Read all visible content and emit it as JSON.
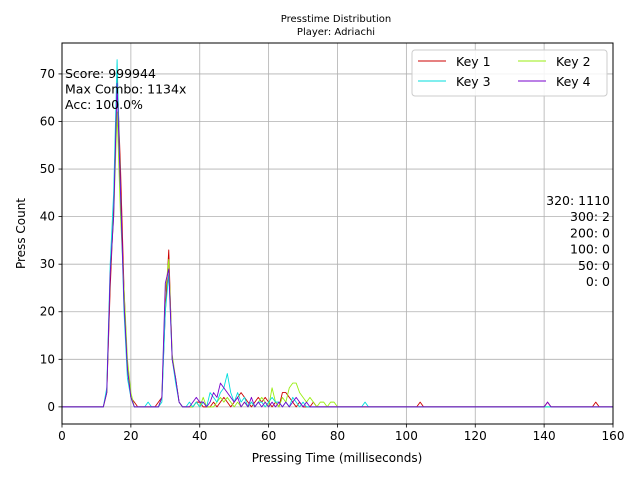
{
  "chart_data": {
    "type": "line",
    "title": "Presstime Distribution",
    "subtitle": "Player: Adriachi",
    "xlabel": "Pressing Time (milliseconds)",
    "ylabel": "Press Count",
    "xlim": [
      0,
      160
    ],
    "ylim": [
      -3.6,
      76.5
    ],
    "xticks": [
      0,
      20,
      40,
      60,
      80,
      100,
      120,
      140,
      160
    ],
    "yticks": [
      0,
      10,
      20,
      30,
      40,
      50,
      60,
      70
    ],
    "grid": true,
    "legend_position": "top-right",
    "legend_columns": 2,
    "series": [
      {
        "name": "Key 1",
        "color": "#cc0000",
        "points": [
          [
            0,
            0
          ],
          [
            12,
            0
          ],
          [
            13,
            3
          ],
          [
            14,
            25
          ],
          [
            15,
            42
          ],
          [
            16,
            70
          ],
          [
            17,
            50
          ],
          [
            18,
            25
          ],
          [
            19,
            8
          ],
          [
            20,
            2
          ],
          [
            21,
            1
          ],
          [
            22,
            0
          ],
          [
            27,
            0
          ],
          [
            28,
            1
          ],
          [
            29,
            2
          ],
          [
            30,
            20
          ],
          [
            31,
            33
          ],
          [
            32,
            10
          ],
          [
            33,
            6
          ],
          [
            34,
            1
          ],
          [
            35,
            0
          ],
          [
            38,
            0
          ],
          [
            39,
            1
          ],
          [
            40,
            1
          ],
          [
            41,
            0
          ],
          [
            43,
            0
          ],
          [
            44,
            1
          ],
          [
            45,
            0
          ],
          [
            46,
            1
          ],
          [
            47,
            2
          ],
          [
            48,
            1
          ],
          [
            49,
            0
          ],
          [
            50,
            1
          ],
          [
            51,
            2
          ],
          [
            52,
            3
          ],
          [
            53,
            2
          ],
          [
            54,
            1
          ],
          [
            55,
            0
          ],
          [
            56,
            1
          ],
          [
            57,
            2
          ],
          [
            58,
            1
          ],
          [
            59,
            2
          ],
          [
            60,
            1
          ],
          [
            61,
            0
          ],
          [
            62,
            1
          ],
          [
            63,
            0
          ],
          [
            64,
            3
          ],
          [
            65,
            3
          ],
          [
            66,
            2
          ],
          [
            67,
            1
          ],
          [
            68,
            0
          ],
          [
            69,
            1
          ],
          [
            70,
            0
          ],
          [
            72,
            0
          ],
          [
            73,
            1
          ],
          [
            74,
            0
          ],
          [
            103,
            0
          ],
          [
            104,
            1
          ],
          [
            105,
            0
          ],
          [
            140,
            0
          ],
          [
            141,
            1
          ],
          [
            142,
            0
          ],
          [
            154,
            0
          ],
          [
            155,
            1
          ],
          [
            156,
            0
          ],
          [
            160,
            0
          ]
        ]
      },
      {
        "name": "Key 2",
        "color": "#99ee11",
        "points": [
          [
            0,
            0
          ],
          [
            12,
            0
          ],
          [
            13,
            3
          ],
          [
            14,
            28
          ],
          [
            15,
            40
          ],
          [
            16,
            62
          ],
          [
            17,
            40
          ],
          [
            18,
            25
          ],
          [
            19,
            10
          ],
          [
            20,
            3
          ],
          [
            21,
            0
          ],
          [
            28,
            0
          ],
          [
            29,
            2
          ],
          [
            30,
            24
          ],
          [
            31,
            31
          ],
          [
            32,
            11
          ],
          [
            33,
            6
          ],
          [
            34,
            1
          ],
          [
            35,
            0
          ],
          [
            38,
            0
          ],
          [
            39,
            1
          ],
          [
            40,
            0
          ],
          [
            41,
            2
          ],
          [
            42,
            0
          ],
          [
            44,
            0
          ],
          [
            45,
            1
          ],
          [
            46,
            2
          ],
          [
            47,
            1
          ],
          [
            48,
            2
          ],
          [
            49,
            1
          ],
          [
            50,
            0
          ],
          [
            51,
            1
          ],
          [
            52,
            0
          ],
          [
            53,
            1
          ],
          [
            54,
            0
          ],
          [
            55,
            1
          ],
          [
            56,
            0
          ],
          [
            57,
            1
          ],
          [
            58,
            2
          ],
          [
            59,
            1
          ],
          [
            60,
            0
          ],
          [
            61,
            4
          ],
          [
            62,
            1
          ],
          [
            63,
            0
          ],
          [
            64,
            2
          ],
          [
            65,
            1
          ],
          [
            66,
            4
          ],
          [
            67,
            5
          ],
          [
            68,
            5
          ],
          [
            69,
            3
          ],
          [
            70,
            2
          ],
          [
            71,
            1
          ],
          [
            72,
            2
          ],
          [
            73,
            1
          ],
          [
            74,
            0
          ],
          [
            75,
            1
          ],
          [
            76,
            1
          ],
          [
            77,
            0
          ],
          [
            78,
            1
          ],
          [
            79,
            1
          ],
          [
            80,
            0
          ],
          [
            160,
            0
          ]
        ]
      },
      {
        "name": "Key 3",
        "color": "#00dddd",
        "points": [
          [
            0,
            0
          ],
          [
            12,
            0
          ],
          [
            13,
            4
          ],
          [
            14,
            30
          ],
          [
            15,
            45
          ],
          [
            16,
            73
          ],
          [
            17,
            45
          ],
          [
            18,
            20
          ],
          [
            19,
            6
          ],
          [
            20,
            2
          ],
          [
            21,
            0
          ],
          [
            24,
            0
          ],
          [
            25,
            1
          ],
          [
            26,
            0
          ],
          [
            28,
            0
          ],
          [
            29,
            1
          ],
          [
            30,
            20
          ],
          [
            31,
            28
          ],
          [
            32,
            10
          ],
          [
            33,
            5
          ],
          [
            34,
            1
          ],
          [
            35,
            0
          ],
          [
            36,
            0
          ],
          [
            37,
            1
          ],
          [
            38,
            0
          ],
          [
            39,
            1
          ],
          [
            40,
            0
          ],
          [
            41,
            1
          ],
          [
            42,
            0
          ],
          [
            43,
            3
          ],
          [
            44,
            2
          ],
          [
            45,
            1
          ],
          [
            46,
            3
          ],
          [
            47,
            4
          ],
          [
            48,
            7
          ],
          [
            49,
            3
          ],
          [
            50,
            1
          ],
          [
            51,
            3
          ],
          [
            52,
            1
          ],
          [
            53,
            2
          ],
          [
            54,
            0
          ],
          [
            55,
            1
          ],
          [
            56,
            0
          ],
          [
            57,
            1
          ],
          [
            58,
            1
          ],
          [
            59,
            0
          ],
          [
            60,
            1
          ],
          [
            61,
            2
          ],
          [
            62,
            1
          ],
          [
            63,
            1
          ],
          [
            64,
            0
          ],
          [
            65,
            1
          ],
          [
            66,
            0
          ],
          [
            67,
            2
          ],
          [
            68,
            1
          ],
          [
            69,
            0
          ],
          [
            70,
            1
          ],
          [
            71,
            0
          ],
          [
            87,
            0
          ],
          [
            88,
            1
          ],
          [
            89,
            0
          ],
          [
            160,
            0
          ]
        ]
      },
      {
        "name": "Key 4",
        "color": "#7700cc",
        "points": [
          [
            0,
            0
          ],
          [
            12,
            0
          ],
          [
            13,
            3
          ],
          [
            14,
            28
          ],
          [
            15,
            40
          ],
          [
            16,
            68
          ],
          [
            17,
            45
          ],
          [
            18,
            22
          ],
          [
            19,
            8
          ],
          [
            20,
            2
          ],
          [
            21,
            0
          ],
          [
            28,
            0
          ],
          [
            29,
            2
          ],
          [
            30,
            26
          ],
          [
            31,
            29
          ],
          [
            32,
            10
          ],
          [
            33,
            6
          ],
          [
            34,
            1
          ],
          [
            35,
            0
          ],
          [
            37,
            0
          ],
          [
            38,
            1
          ],
          [
            39,
            2
          ],
          [
            40,
            1
          ],
          [
            41,
            1
          ],
          [
            42,
            0
          ],
          [
            43,
            1
          ],
          [
            44,
            3
          ],
          [
            45,
            2
          ],
          [
            46,
            5
          ],
          [
            47,
            4
          ],
          [
            48,
            3
          ],
          [
            49,
            2
          ],
          [
            50,
            1
          ],
          [
            51,
            2
          ],
          [
            52,
            0
          ],
          [
            53,
            1
          ],
          [
            54,
            0
          ],
          [
            55,
            2
          ],
          [
            56,
            0
          ],
          [
            57,
            1
          ],
          [
            58,
            0
          ],
          [
            59,
            1
          ],
          [
            60,
            0
          ],
          [
            61,
            1
          ],
          [
            62,
            0
          ],
          [
            63,
            1
          ],
          [
            64,
            0
          ],
          [
            65,
            1
          ],
          [
            66,
            0
          ],
          [
            67,
            1
          ],
          [
            68,
            2
          ],
          [
            69,
            1
          ],
          [
            70,
            0
          ],
          [
            71,
            1
          ],
          [
            72,
            0
          ],
          [
            140,
            0
          ],
          [
            141,
            1
          ],
          [
            142,
            0
          ],
          [
            160,
            0
          ]
        ]
      }
    ],
    "stats_left": [
      "Score: 999944",
      "Max Combo: 1134x",
      "Acc: 100.0%"
    ],
    "stats_right": [
      "320: 1110",
      "300: 2",
      "200: 0",
      "100: 0",
      "50: 0",
      "0: 0"
    ]
  }
}
